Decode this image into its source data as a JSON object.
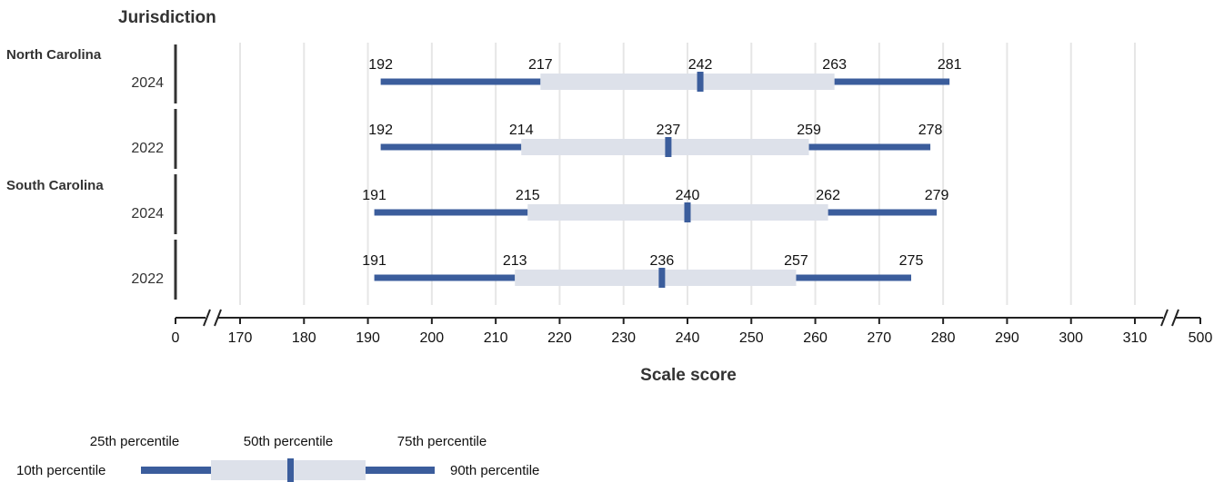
{
  "chart_data": {
    "type": "percentile-range",
    "y_title": "Jurisdiction",
    "xlabel": "Scale score",
    "x_ticks": [
      "0",
      "170",
      "180",
      "190",
      "200",
      "210",
      "220",
      "230",
      "240",
      "250",
      "260",
      "270",
      "280",
      "290",
      "300",
      "310",
      "500"
    ],
    "x_range": [
      170,
      310
    ],
    "axis_breaks": [
      "0-170",
      "310-500"
    ],
    "grid": true,
    "colors": {
      "whisker": "#3b5d9c",
      "box": "#dde1ea",
      "median": "#3b5d9c",
      "grid": "#e6e6e6",
      "axis": "#222222"
    },
    "groups": [
      {
        "jurisdiction": "North Carolina",
        "rows": [
          {
            "year": "2024",
            "p10": 192,
            "p25": 217,
            "p50": 242,
            "p75": 263,
            "p90": 281
          },
          {
            "year": "2022",
            "p10": 192,
            "p25": 214,
            "p50": 237,
            "p75": 259,
            "p90": 278
          }
        ]
      },
      {
        "jurisdiction": "South Carolina",
        "rows": [
          {
            "year": "2024",
            "p10": 191,
            "p25": 215,
            "p50": 240,
            "p75": 262,
            "p90": 279
          },
          {
            "year": "2022",
            "p10": 191,
            "p25": 213,
            "p50": 236,
            "p75": 257,
            "p90": 275
          }
        ]
      }
    ]
  },
  "legend": {
    "p25": "25th percentile",
    "p50": "50th percentile",
    "p75": "75th percentile",
    "p10": "10th percentile",
    "p90": "90th percentile"
  }
}
